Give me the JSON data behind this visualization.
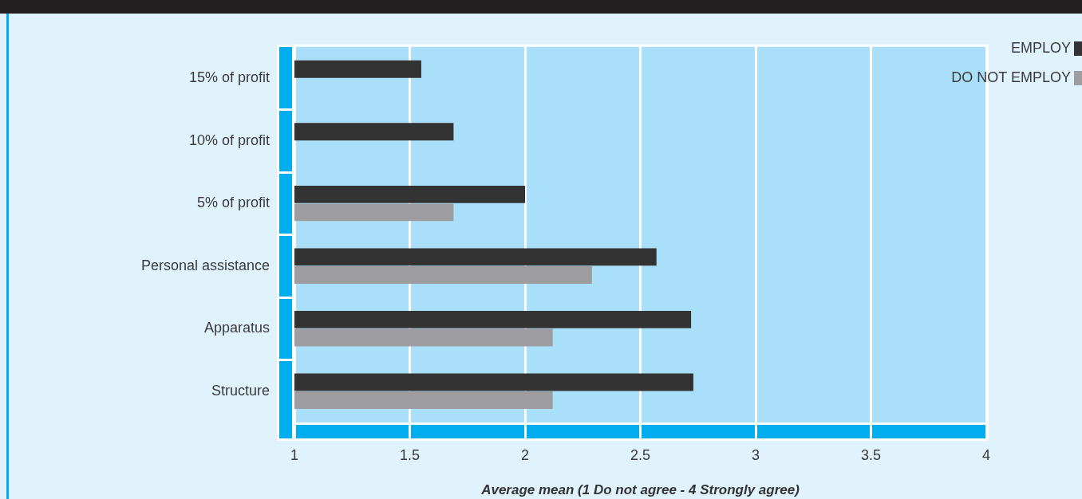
{
  "chart_data": {
    "type": "bar",
    "orientation": "horizontal",
    "xlabel": "Average mean (1 Do not agree - 4 Strongly agree)",
    "categories": [
      "15% of profit",
      "10% of profit",
      "5% of profit",
      "Personal assistance",
      "Apparatus",
      "Structure"
    ],
    "series": [
      {
        "name": "EMPLOY",
        "color": "#333333",
        "values": [
          1.55,
          1.69,
          2.0,
          2.57,
          2.72,
          2.73
        ]
      },
      {
        "name": "DO NOT EMPLOY",
        "color": "#9d9d9f",
        "values": [
          null,
          null,
          1.69,
          2.29,
          2.12,
          2.12
        ]
      }
    ],
    "xlim": [
      1,
      4
    ],
    "xticks": [
      1,
      1.5,
      2,
      2.5,
      3,
      3.5,
      4
    ],
    "grid": "x",
    "legend": "top right"
  }
}
